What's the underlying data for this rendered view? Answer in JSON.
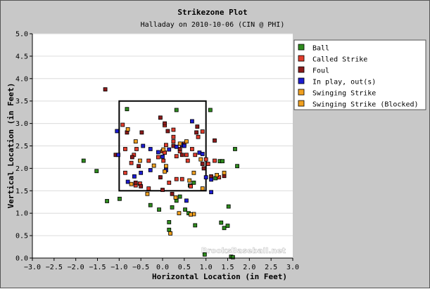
{
  "chart_data": {
    "type": "scatter",
    "title": "Strikezone Plot",
    "subtitle": "Halladay on 2010-10-06 (CIN @ PHI)",
    "xlabel": "Horizontal Location (in Feet)",
    "ylabel": "Vertical Location (in Feet)",
    "xlim": [
      -3.0,
      3.0
    ],
    "ylim": [
      0.0,
      5.0
    ],
    "x_ticks": [
      "−3.0",
      "−2.5",
      "−2.0",
      "−1.5",
      "−1.0",
      "−0.5",
      "0.0",
      "0.5",
      "1.0",
      "1.5",
      "2.0",
      "2.5",
      "3.0"
    ],
    "y_ticks": [
      "0.0",
      "0.5",
      "1.0",
      "1.5",
      "2.0",
      "2.5",
      "3.0",
      "3.5",
      "4.0",
      "4.5",
      "5.0"
    ],
    "x_tick_values": [
      -3.0,
      -2.5,
      -2.0,
      -1.5,
      -1.0,
      -0.5,
      0.0,
      0.5,
      1.0,
      1.5,
      2.0,
      2.5,
      3.0
    ],
    "y_tick_values": [
      0.0,
      0.5,
      1.0,
      1.5,
      2.0,
      2.5,
      3.0,
      3.5,
      4.0,
      4.5,
      5.0
    ],
    "grid": "horizontal",
    "legend_position": "top-right",
    "strike_zone": {
      "x": [
        -1.0,
        1.0
      ],
      "y": [
        1.5,
        3.5
      ]
    },
    "watermark": "BrooksBaseball.net",
    "series": [
      {
        "name": "Ball",
        "color": "#2e8b1e",
        "points": [
          [
            -1.82,
            2.17
          ],
          [
            -1.52,
            1.94
          ],
          [
            -1.28,
            1.27
          ],
          [
            -0.99,
            1.32
          ],
          [
            -0.82,
            3.32
          ],
          [
            0.32,
            3.3
          ],
          [
            1.1,
            3.3
          ],
          [
            -0.28,
            1.18
          ],
          [
            -0.08,
            1.08
          ],
          [
            0.22,
            1.13
          ],
          [
            0.4,
            1.37
          ],
          [
            0.52,
            1.08
          ],
          [
            0.32,
            1.28
          ],
          [
            0.15,
            0.8
          ],
          [
            0.15,
            0.63
          ],
          [
            0.6,
            1.0
          ],
          [
            0.75,
            0.73
          ],
          [
            0.63,
            1.62
          ],
          [
            0.72,
            1.68
          ],
          [
            1.35,
            0.79
          ],
          [
            1.42,
            0.67
          ],
          [
            1.5,
            0.72
          ],
          [
            1.52,
            1.15
          ],
          [
            1.67,
            2.43
          ],
          [
            1.72,
            2.05
          ],
          [
            1.22,
            1.78
          ],
          [
            0.97,
            0.08
          ],
          [
            1.58,
            0.03
          ],
          [
            1.62,
            0.02
          ],
          [
            1.32,
            2.16
          ],
          [
            1.38,
            2.16
          ]
        ]
      },
      {
        "name": "Called Strike",
        "color": "#e03c2c",
        "points": [
          [
            -0.92,
            2.97
          ],
          [
            -0.86,
            2.43
          ],
          [
            -0.86,
            1.9
          ],
          [
            -0.72,
            2.12
          ],
          [
            -0.66,
            2.3
          ],
          [
            -0.6,
            2.43
          ],
          [
            -0.52,
            1.66
          ],
          [
            -0.32,
            2.17
          ],
          [
            -0.1,
            2.25
          ],
          [
            0.0,
            2.38
          ],
          [
            0.02,
            2.17
          ],
          [
            0.05,
            2.35
          ],
          [
            0.08,
            2.52
          ],
          [
            0.25,
            2.7
          ],
          [
            0.25,
            2.6
          ],
          [
            0.32,
            2.27
          ],
          [
            0.4,
            2.38
          ],
          [
            0.5,
            2.55
          ],
          [
            0.55,
            2.3
          ],
          [
            0.58,
            2.17
          ],
          [
            0.68,
            2.43
          ],
          [
            0.75,
            2.3
          ],
          [
            0.82,
            2.7
          ],
          [
            0.92,
            2.82
          ],
          [
            1.0,
            2.2
          ],
          [
            0.05,
            2.96
          ],
          [
            0.25,
            2.86
          ],
          [
            0.15,
            1.68
          ],
          [
            0.32,
            1.76
          ],
          [
            0.45,
            1.76
          ],
          [
            0.65,
            1.6
          ],
          [
            -0.62,
            1.62
          ],
          [
            -0.32,
            1.55
          ],
          [
            1.2,
            2.17
          ],
          [
            1.3,
            1.8
          ],
          [
            1.05,
            2.1
          ]
        ]
      },
      {
        "name": "Foul",
        "color": "#8b1a1a",
        "points": [
          [
            -1.32,
            3.76
          ],
          [
            -1.08,
            2.3
          ],
          [
            -0.82,
            2.8
          ],
          [
            -0.7,
            2.25
          ],
          [
            -0.55,
            2.05
          ],
          [
            -0.5,
            1.6
          ],
          [
            -0.48,
            2.8
          ],
          [
            -0.05,
            3.13
          ],
          [
            0.05,
            3.0
          ],
          [
            0.12,
            2.83
          ],
          [
            0.25,
            2.5
          ],
          [
            0.4,
            2.43
          ],
          [
            0.45,
            2.3
          ],
          [
            0.78,
            2.8
          ],
          [
            0.8,
            2.93
          ],
          [
            0.92,
            2.1
          ],
          [
            -0.62,
            1.68
          ],
          [
            1.2,
            2.62
          ],
          [
            1.12,
            1.82
          ],
          [
            0.95,
            2.0
          ],
          [
            0.0,
            1.52
          ],
          [
            0.22,
            1.43
          ],
          [
            -0.05,
            1.8
          ],
          [
            1.42,
            1.83
          ]
        ]
      },
      {
        "name": "In play, out(s)",
        "color": "#1c1cd0",
        "points": [
          [
            -1.05,
            2.83
          ],
          [
            -0.65,
            1.82
          ],
          [
            -0.5,
            1.9
          ],
          [
            -0.28,
            1.96
          ],
          [
            -0.28,
            2.43
          ],
          [
            -0.1,
            2.36
          ],
          [
            0.0,
            2.26
          ],
          [
            0.08,
            1.96
          ],
          [
            0.15,
            2.42
          ],
          [
            0.32,
            2.48
          ],
          [
            0.45,
            2.52
          ],
          [
            0.68,
            3.05
          ],
          [
            0.85,
            2.35
          ],
          [
            0.92,
            2.32
          ],
          [
            1.12,
            1.75
          ],
          [
            1.12,
            1.47
          ],
          [
            -0.8,
            1.7
          ],
          [
            0.55,
            1.28
          ],
          [
            -1.02,
            2.3
          ],
          [
            1.0,
            1.8
          ],
          [
            0.5,
            2.5
          ],
          [
            -0.45,
            2.5
          ]
        ]
      },
      {
        "name": "Swinging Strike",
        "color": "#f0a020",
        "points": [
          [
            -0.8,
            2.87
          ],
          [
            -0.72,
            1.65
          ],
          [
            -0.62,
            2.6
          ],
          [
            -0.52,
            2.17
          ],
          [
            -0.35,
            1.43
          ],
          [
            0.05,
            1.93
          ],
          [
            0.08,
            2.05
          ],
          [
            0.4,
            2.55
          ],
          [
            0.55,
            2.6
          ],
          [
            0.62,
            1.73
          ],
          [
            0.72,
            1.9
          ],
          [
            0.72,
            0.98
          ],
          [
            0.65,
            0.97
          ],
          [
            0.18,
            0.55
          ],
          [
            0.3,
            1.35
          ],
          [
            -0.2,
            2.06
          ],
          [
            0.92,
            1.55
          ],
          [
            1.25,
            1.85
          ],
          [
            1.42,
            1.9
          ],
          [
            0.02,
            2.42
          ],
          [
            0.38,
            1.0
          ],
          [
            0.88,
            2.2
          ]
        ]
      },
      {
        "name": "Swinging Strike (Blocked)",
        "color": "#f0a020",
        "points": []
      }
    ]
  }
}
